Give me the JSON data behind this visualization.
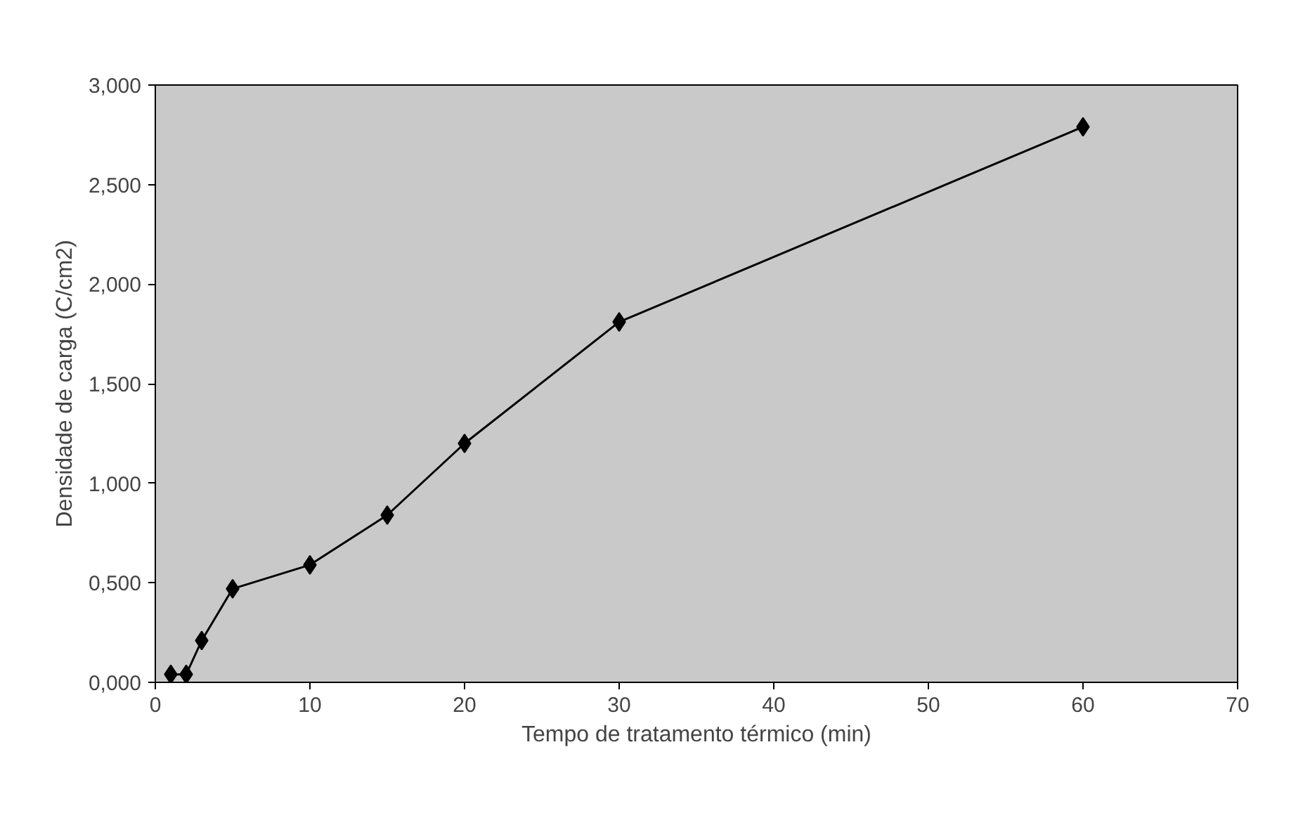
{
  "chart_data": {
    "type": "line",
    "xlabel": "Tempo de tratamento térmico (min)",
    "ylabel": "Densidade de carga (C/cm2)",
    "x": [
      1,
      2,
      3,
      5,
      10,
      15,
      20,
      30,
      60
    ],
    "series": [
      {
        "color": "#000000",
        "values": [
          0.04,
          0.04,
          0.21,
          0.47,
          0.59,
          0.84,
          1.2,
          1.81,
          2.79
        ]
      }
    ],
    "xlim": [
      0,
      70
    ],
    "xticks": [
      0,
      10,
      20,
      30,
      40,
      50,
      60,
      70
    ],
    "ylim": [
      0,
      3
    ],
    "yticks": [
      {
        "value": 0,
        "label": "0,000"
      },
      {
        "value": 0.5,
        "label": "0,500"
      },
      {
        "value": 1,
        "label": "1,000"
      },
      {
        "value": 1.5,
        "label": "1,500"
      },
      {
        "value": 2,
        "label": "2,000"
      },
      {
        "value": 2.5,
        "label": "2,500"
      },
      {
        "value": 3,
        "label": "3,000"
      }
    ],
    "grid": false,
    "marker": "diamond",
    "line_style": "solid"
  }
}
